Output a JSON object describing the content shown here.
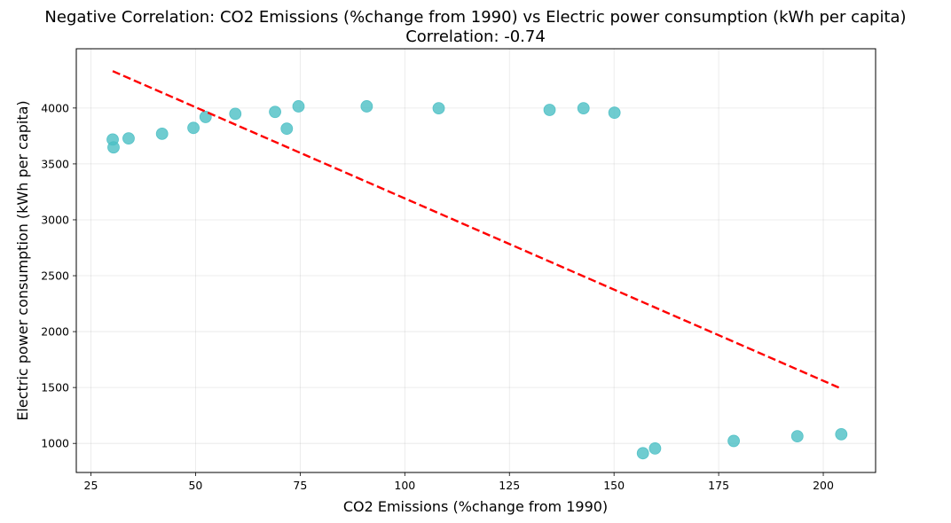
{
  "chart_data": {
    "type": "scatter",
    "title": "Negative Correlation: CO2 Emissions (%change from 1990) vs Electric power consumption (kWh per capita)",
    "subtitle": "Correlation: -0.74",
    "xlabel": "CO2 Emissions (%change from 1990)",
    "ylabel": "Electric power consumption (kWh per capita)",
    "xlim": [
      21.5,
      212.5
    ],
    "ylim": [
      740,
      4530
    ],
    "xticks": [
      25,
      50,
      75,
      100,
      125,
      150,
      175,
      200
    ],
    "yticks": [
      1000,
      1500,
      2000,
      2500,
      3000,
      3500,
      4000
    ],
    "grid": true,
    "point_color": "#4bbfc4",
    "trend_color": "#ff0000",
    "points": [
      {
        "x": 30.2,
        "y": 3718
      },
      {
        "x": 30.4,
        "y": 3648
      },
      {
        "x": 34.0,
        "y": 3728
      },
      {
        "x": 42.0,
        "y": 3770
      },
      {
        "x": 49.5,
        "y": 3822
      },
      {
        "x": 52.4,
        "y": 3920
      },
      {
        "x": 59.5,
        "y": 3948
      },
      {
        "x": 69.0,
        "y": 3965
      },
      {
        "x": 71.8,
        "y": 3815
      },
      {
        "x": 74.6,
        "y": 4015
      },
      {
        "x": 90.9,
        "y": 4015
      },
      {
        "x": 108.1,
        "y": 3998
      },
      {
        "x": 134.6,
        "y": 3983
      },
      {
        "x": 142.7,
        "y": 3998
      },
      {
        "x": 150.1,
        "y": 3958
      },
      {
        "x": 156.9,
        "y": 912
      },
      {
        "x": 159.8,
        "y": 955
      },
      {
        "x": 178.6,
        "y": 1022
      },
      {
        "x": 193.8,
        "y": 1064
      },
      {
        "x": 204.3,
        "y": 1082
      }
    ],
    "trend_line": {
      "x": [
        30.2,
        204.3
      ],
      "y": [
        4330,
        1490
      ]
    }
  }
}
